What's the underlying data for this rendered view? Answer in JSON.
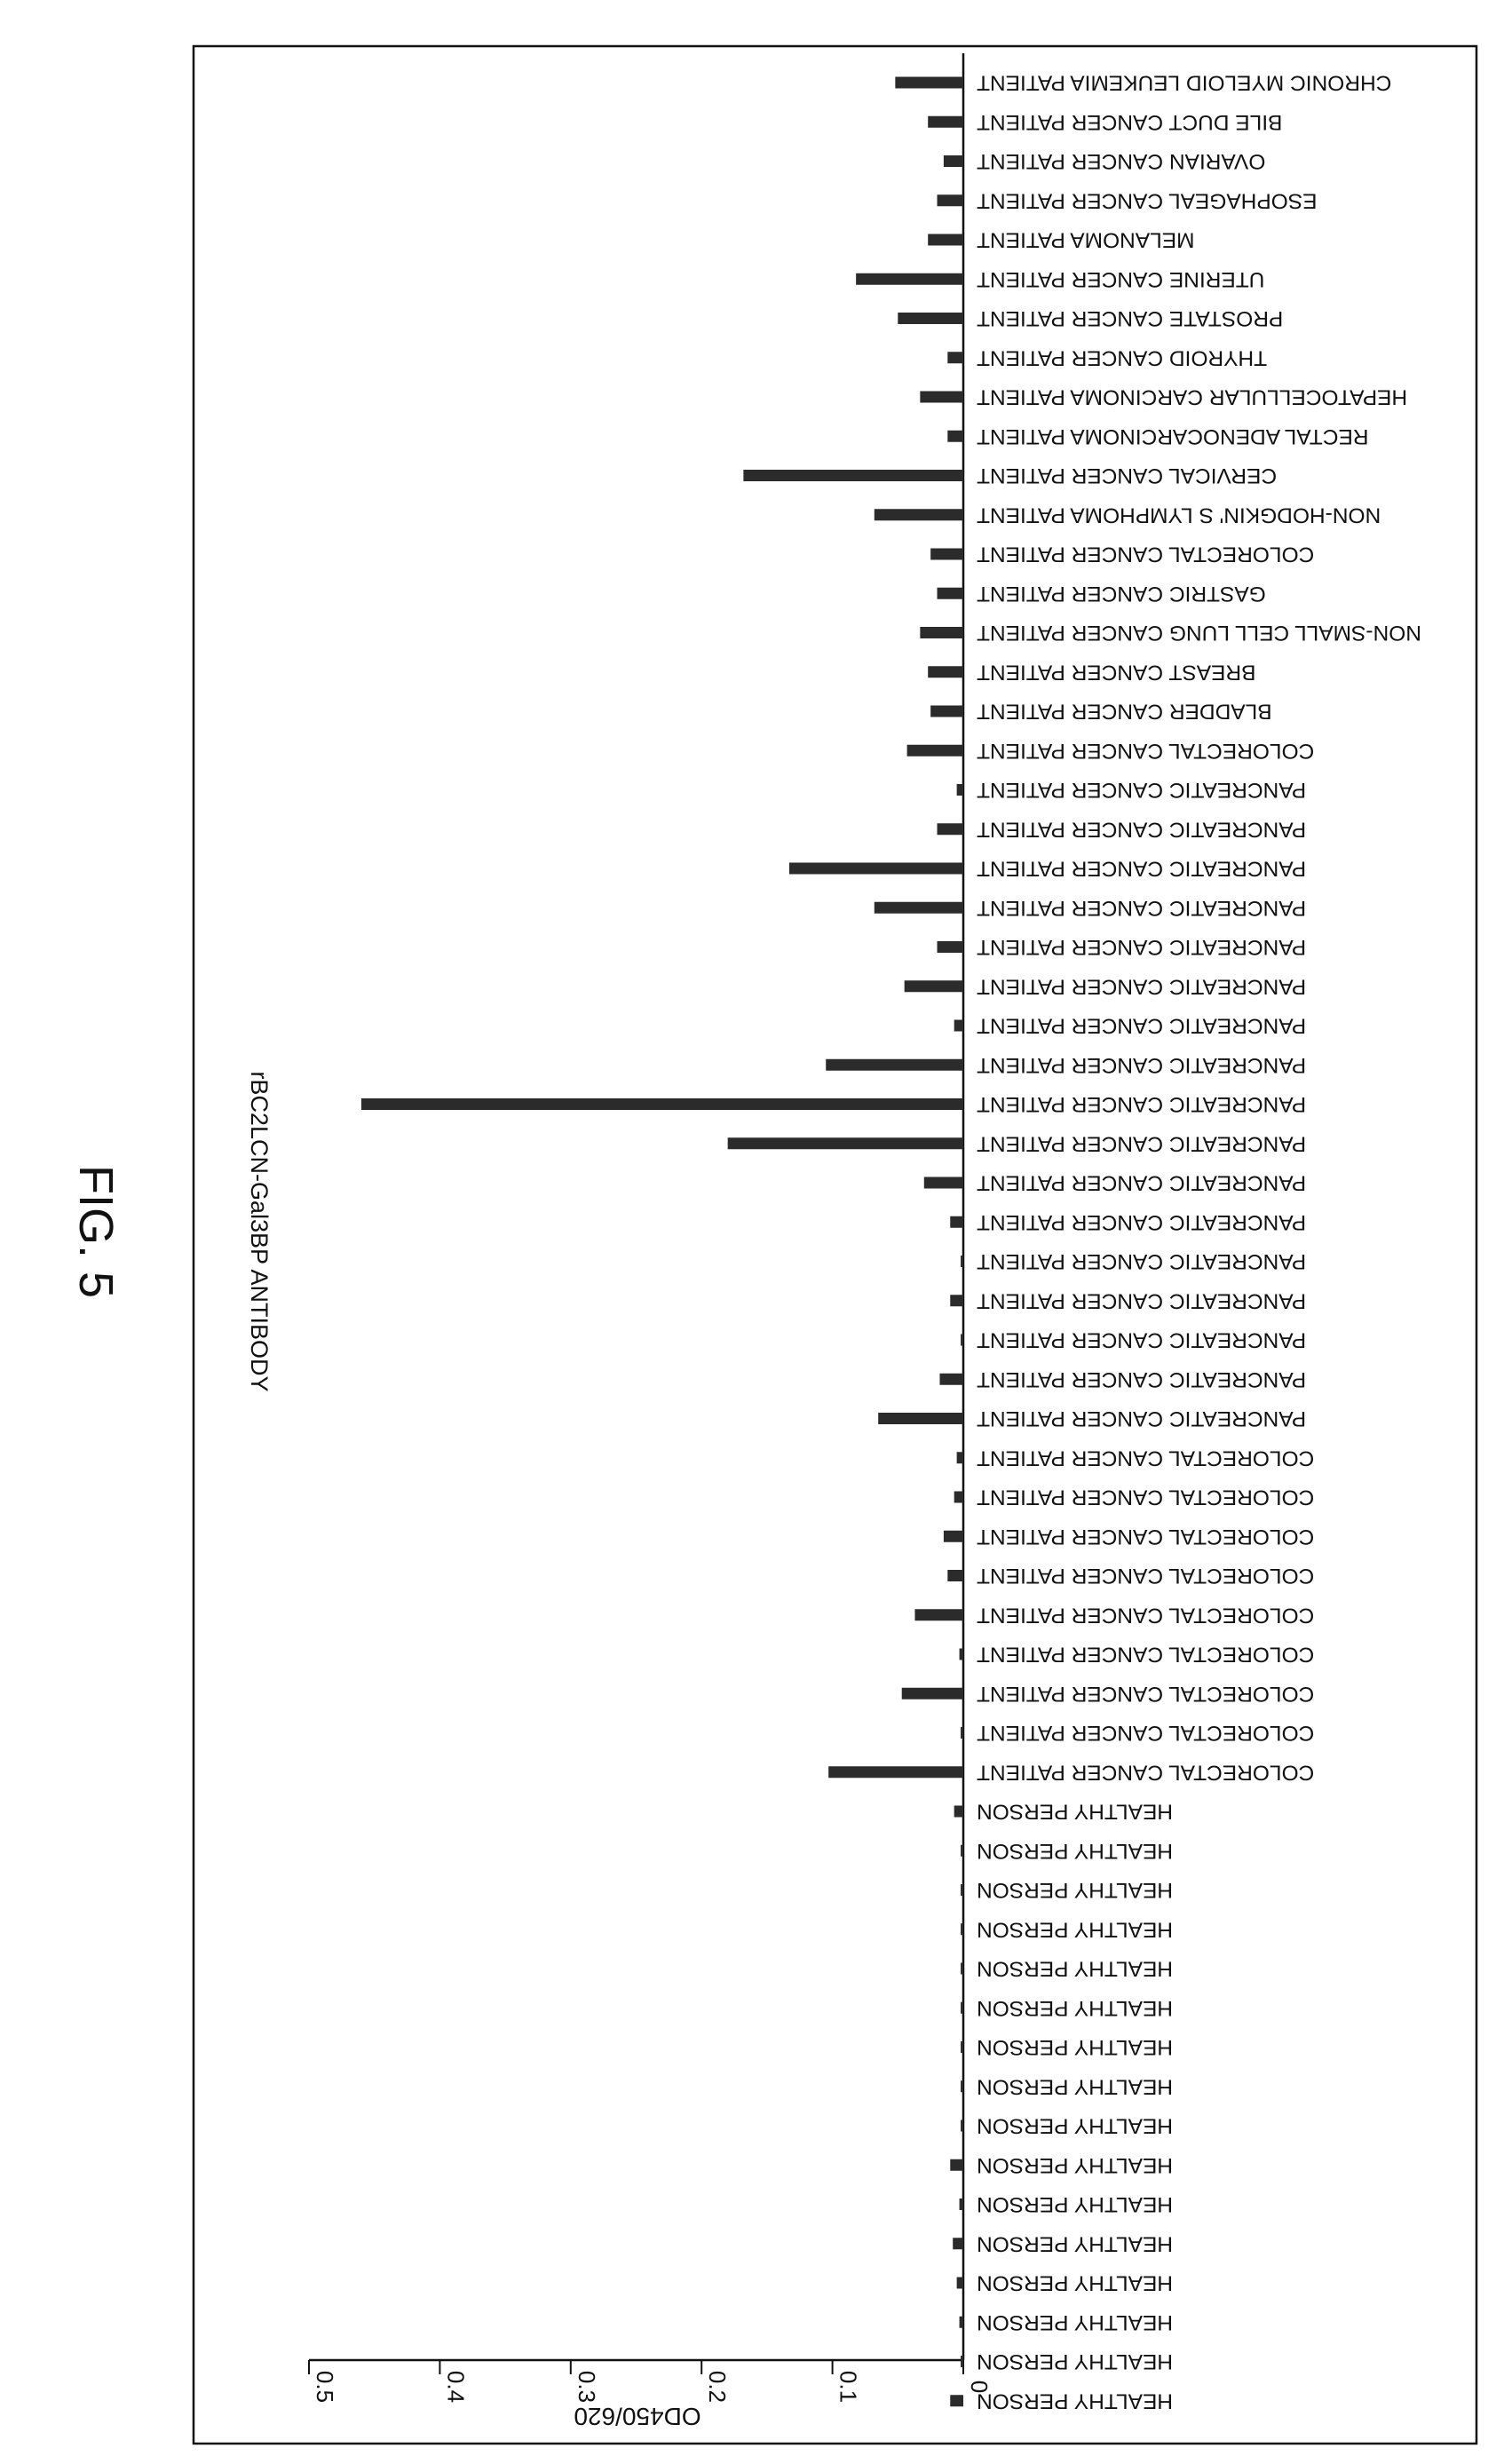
{
  "figure": {
    "title": "FIG. 5"
  },
  "chart_data": {
    "type": "bar",
    "orientation": "vertical (image rotated 90° clockwise)",
    "title": "rBC2LCN-Gal3BP ANTIBODY",
    "xlabel": "",
    "ylabel": "OD450/620",
    "ylim": [
      0,
      0.5
    ],
    "yticks": [
      "0",
      "0.1",
      "0.2",
      "0.3",
      "0.4",
      "0.5"
    ],
    "ytick_values": [
      0,
      0.1,
      0.2,
      0.3,
      0.4,
      0.5
    ],
    "grid": false,
    "legend": "none",
    "bar_color": "#2b2b2b",
    "categories": [
      "HEALTHY PERSON",
      "HEALTHY PERSON",
      "HEALTHY PERSON",
      "HEALTHY PERSON",
      "HEALTHY PERSON",
      "HEALTHY PERSON",
      "HEALTHY PERSON",
      "HEALTHY PERSON",
      "HEALTHY PERSON",
      "HEALTHY PERSON",
      "HEALTHY PERSON",
      "HEALTHY PERSON",
      "HEALTHY PERSON",
      "HEALTHY PERSON",
      "HEALTHY PERSON",
      "HEALTHY PERSON",
      "COLORECTAL CANCER PATIENT",
      "COLORECTAL CANCER PATIENT",
      "COLORECTAL CANCER PATIENT",
      "COLORECTAL CANCER PATIENT",
      "COLORECTAL CANCER PATIENT",
      "COLORECTAL CANCER PATIENT",
      "COLORECTAL CANCER PATIENT",
      "COLORECTAL CANCER PATIENT",
      "COLORECTAL CANCER PATIENT",
      "PANCREATIC CANCER PATIENT",
      "PANCREATIC CANCER PATIENT",
      "PANCREATIC CANCER PATIENT",
      "PANCREATIC CANCER PATIENT",
      "PANCREATIC CANCER PATIENT",
      "PANCREATIC CANCER PATIENT",
      "PANCREATIC CANCER PATIENT",
      "PANCREATIC CANCER PATIENT",
      "PANCREATIC CANCER PATIENT",
      "PANCREATIC CANCER PATIENT",
      "PANCREATIC CANCER PATIENT",
      "PANCREATIC CANCER PATIENT",
      "PANCREATIC CANCER PATIENT",
      "PANCREATIC CANCER PATIENT",
      "PANCREATIC CANCER PATIENT",
      "PANCREATIC CANCER PATIENT",
      "PANCREATIC CANCER PATIENT",
      "COLORECTAL CANCER PATIENT",
      "BLADDER CANCER PATIENT",
      "BREAST CANCER PATIENT",
      "NON-SMALL CELL LUNG CANCER PATIENT",
      "GASTRIC CANCER PATIENT",
      "COLORECTAL CANCER PATIENT",
      "NON-HODGKIN' S LYMPHOMA PATIENT",
      "CERVICAL CANCER PATIENT",
      "RECTAL ADENOCARCINOMA PATIENT",
      "HEPATOCELLULAR CARCINOMA PATIENT",
      "THYROID CANCER PATIENT",
      "PROSTATE CANCER PATIENT",
      "UTERINE CANCER PATIENT",
      "MELANOMA PATIENT",
      "ESOPHAGEAL CANCER PATIENT",
      "OVARIAN CANCER PATIENT",
      "BILE DUCT CANCER PATIENT",
      "CHRONIC MYELOID LEUKEMIA PATIENT"
    ],
    "values": [
      0.01,
      0.002,
      0.003,
      0.005,
      0.008,
      0.003,
      0.01,
      0.002,
      0.002,
      0.002,
      0.002,
      0.002,
      0.002,
      0.002,
      0.002,
      0.007,
      0.103,
      0.002,
      0.047,
      0.003,
      0.037,
      0.012,
      0.015,
      0.007,
      0.005,
      0.065,
      0.018,
      0.002,
      0.01,
      0.002,
      0.01,
      0.03,
      0.18,
      0.46,
      0.105,
      0.007,
      0.045,
      0.02,
      0.068,
      0.133,
      0.02,
      0.005,
      0.043,
      0.025,
      0.027,
      0.033,
      0.02,
      0.025,
      0.068,
      0.168,
      0.012,
      0.033,
      0.012,
      0.05,
      0.082,
      0.027,
      0.02,
      0.015,
      0.027,
      0.052
    ]
  }
}
